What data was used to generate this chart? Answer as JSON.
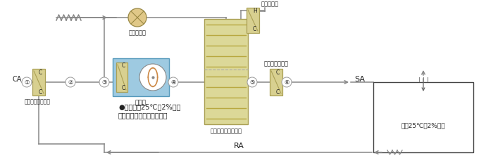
{
  "bg_color": "#ffffff",
  "line_color": "#888888",
  "coil_fill": "#d8d090",
  "coil_edge": "#aaa055",
  "ahu_fill": "#9ecae1",
  "ahu_edge": "#5599bb",
  "room_edge": "#444444",
  "text_color": "#222222",
  "gray_text": "#555555",
  "labels": {
    "CA": "CA",
    "SA": "SA",
    "RA": "RA",
    "pre_coil": "予冷予除湿コイル",
    "ahu": "空調機",
    "desiccant": "吸着式化学的除湿機",
    "regen_fan": "再生ファン",
    "regen_heater": "再生ヒータ",
    "temp_coil": "温度調節コイル",
    "condition": "●空調条件25℃　2%以下",
    "method": "〈吸着式化学的除湿方法〉",
    "room_text": "室内25℃　2%以下",
    "H": "H",
    "C": "C",
    "num1": "①",
    "num2": "②",
    "num3": "③",
    "num4": "④",
    "num5": "⑤",
    "num6": "⑥"
  },
  "figsize": [
    6.9,
    2.35
  ],
  "dpi": 100
}
